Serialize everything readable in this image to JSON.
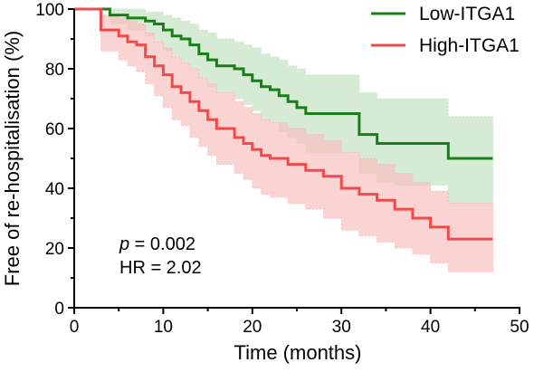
{
  "chart_data": {
    "type": "line",
    "chart_style": "kaplan-meier step curves with shaded confidence bands",
    "xlabel": "Time (months)",
    "ylabel": "Free of re-hospitalisation (%)",
    "xlim": [
      0,
      50
    ],
    "ylim": [
      0,
      100
    ],
    "x_ticks": [
      0,
      10,
      20,
      30,
      40,
      50
    ],
    "y_ticks": [
      0,
      20,
      40,
      60,
      80,
      100
    ],
    "grid": false,
    "legend_position": "top-right",
    "annotation": {
      "p_symbol": "p",
      "p_text": " = 0.002",
      "hr_text": "HR = 2.02"
    },
    "series": [
      {
        "name": "Low-ITGA1",
        "color": "#1a7f1a",
        "band_color": "#cfe8cb",
        "x": [
          0,
          4,
          6,
          8,
          9,
          10,
          11,
          12,
          13,
          14,
          15,
          16,
          18,
          19,
          20,
          21,
          22,
          23,
          24,
          25,
          26,
          30,
          32,
          34,
          36,
          42,
          47
        ],
        "y": [
          100,
          98,
          97,
          96,
          95,
          93,
          91,
          90,
          88,
          85,
          83,
          81,
          80,
          78,
          76,
          74,
          73,
          71,
          69,
          67,
          65,
          65,
          58,
          55,
          55,
          50,
          50
        ],
        "lower": [
          100,
          95,
          93,
          91,
          89,
          86,
          84,
          82,
          80,
          77,
          74,
          72,
          70,
          68,
          66,
          63,
          62,
          59,
          57,
          55,
          52,
          52,
          45,
          42,
          41,
          35,
          35
        ],
        "upper": [
          100,
          100,
          100,
          99,
          99,
          98,
          97,
          96,
          95,
          93,
          92,
          90,
          89,
          88,
          87,
          85,
          84,
          83,
          81,
          80,
          78,
          78,
          72,
          70,
          70,
          64,
          64
        ]
      },
      {
        "name": "High-ITGA1",
        "color": "#f04a4a",
        "band_color": "#f8bcbc",
        "x": [
          0,
          3,
          5,
          6,
          7,
          8,
          9,
          10,
          11,
          12,
          13,
          14,
          15,
          16,
          18,
          19,
          20,
          21,
          22,
          24,
          26,
          28,
          30,
          32,
          34,
          36,
          38,
          40,
          42,
          47
        ],
        "y": [
          100,
          93,
          91,
          89,
          88,
          84,
          81,
          78,
          74,
          72,
          69,
          66,
          63,
          60,
          57,
          55,
          53,
          51,
          50,
          48,
          46,
          44,
          40,
          38,
          36,
          33,
          30,
          27,
          23,
          23
        ],
        "lower": [
          100,
          86,
          83,
          81,
          79,
          75,
          71,
          67,
          63,
          61,
          57,
          54,
          51,
          48,
          45,
          43,
          40,
          38,
          37,
          35,
          33,
          30,
          26,
          24,
          22,
          20,
          18,
          15,
          12,
          12
        ],
        "upper": [
          100,
          98,
          97,
          96,
          95,
          92,
          89,
          87,
          84,
          82,
          80,
          77,
          75,
          72,
          69,
          67,
          65,
          63,
          62,
          60,
          58,
          56,
          52,
          50,
          48,
          45,
          42,
          39,
          35,
          35
        ]
      }
    ]
  }
}
